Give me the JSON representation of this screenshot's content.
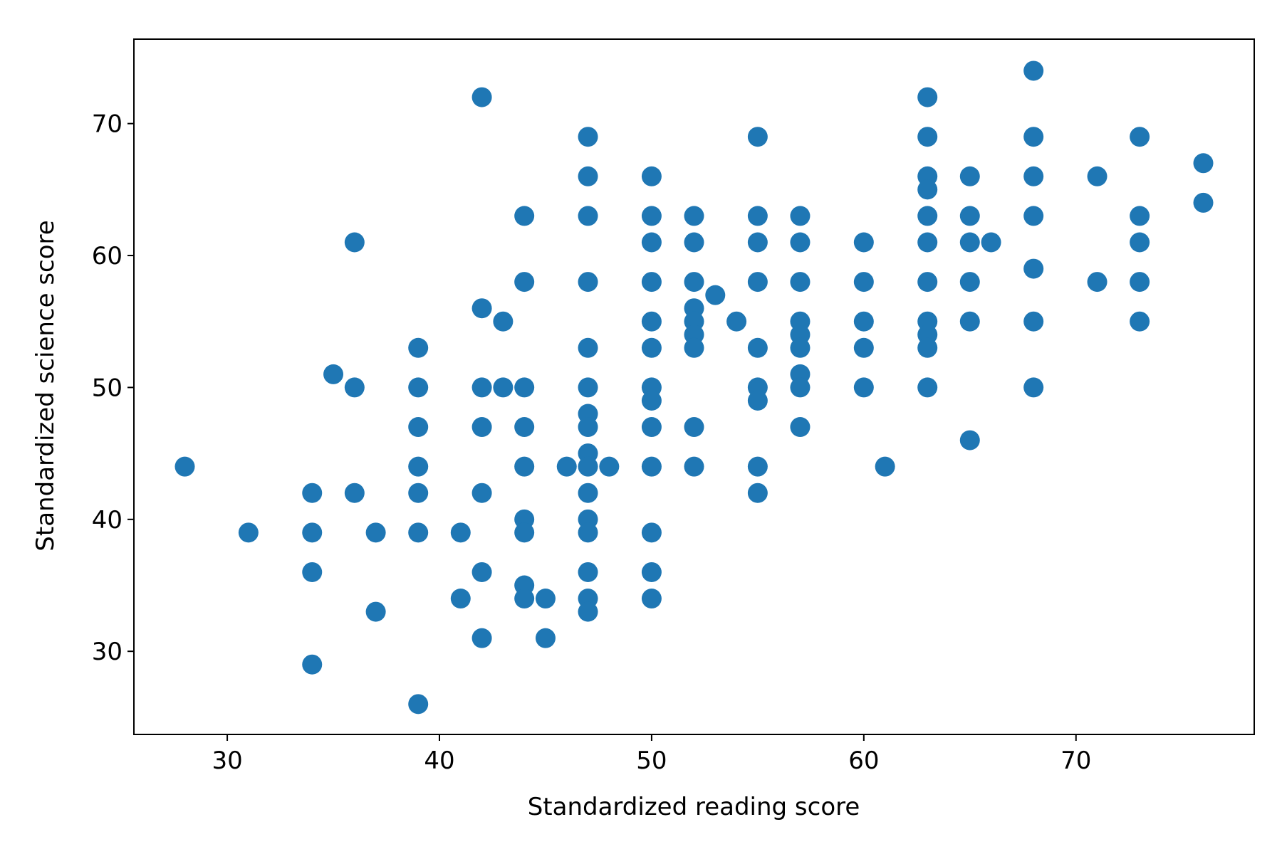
{
  "chart_data": {
    "type": "scatter",
    "xlabel": "Standardized reading score",
    "ylabel": "Standardized science score",
    "color": "#1f77b4",
    "x": [
      28,
      31,
      34,
      34,
      34,
      34,
      35,
      36,
      36,
      36,
      37,
      37,
      39,
      39,
      39,
      39,
      39,
      39,
      39,
      41,
      41,
      42,
      42,
      42,
      42,
      42,
      42,
      42,
      43,
      43,
      44,
      44,
      44,
      44,
      44,
      44,
      44,
      44,
      44,
      45,
      45,
      46,
      47,
      47,
      47,
      47,
      47,
      47,
      47,
      47,
      47,
      47,
      47,
      47,
      47,
      47,
      47,
      47,
      48,
      50,
      50,
      50,
      50,
      50,
      50,
      50,
      50,
      50,
      50,
      50,
      50,
      50,
      52,
      52,
      52,
      52,
      52,
      52,
      52,
      52,
      52,
      53,
      54,
      55,
      55,
      55,
      55,
      55,
      55,
      55,
      55,
      55,
      57,
      57,
      57,
      57,
      57,
      57,
      57,
      57,
      57,
      60,
      60,
      60,
      60,
      60,
      61,
      63,
      63,
      63,
      63,
      63,
      63,
      63,
      63,
      63,
      63,
      63,
      65,
      65,
      65,
      65,
      65,
      65,
      66,
      68,
      68,
      68,
      68,
      68,
      68,
      68,
      71,
      71,
      73,
      73,
      73,
      73,
      73,
      76,
      76
    ],
    "values": [
      44,
      39,
      42,
      39,
      36,
      29,
      51,
      61,
      50,
      42,
      39,
      33,
      53,
      50,
      47,
      44,
      42,
      39,
      26,
      39,
      34,
      72,
      56,
      50,
      47,
      42,
      36,
      31,
      55,
      50,
      63,
      58,
      50,
      47,
      44,
      40,
      39,
      35,
      34,
      34,
      31,
      44,
      69,
      66,
      63,
      58,
      53,
      50,
      48,
      47,
      45,
      44,
      42,
      40,
      39,
      36,
      34,
      33,
      44,
      66,
      63,
      61,
      58,
      55,
      53,
      50,
      49,
      47,
      44,
      39,
      36,
      34,
      63,
      61,
      58,
      56,
      55,
      54,
      53,
      47,
      44,
      57,
      55,
      69,
      63,
      61,
      58,
      53,
      50,
      49,
      44,
      42,
      63,
      61,
      58,
      55,
      54,
      53,
      51,
      50,
      47,
      61,
      58,
      55,
      53,
      50,
      44,
      72,
      69,
      66,
      65,
      63,
      61,
      58,
      55,
      54,
      53,
      50,
      66,
      63,
      61,
      58,
      55,
      46,
      61,
      74,
      69,
      66,
      63,
      59,
      55,
      50,
      66,
      58,
      69,
      63,
      61,
      58,
      55,
      67,
      64
    ],
    "xlim": [
      25.6,
      78.4
    ],
    "xticks": [
      30,
      40,
      50,
      60,
      70
    ],
    "ylim": [
      23.7,
      76.4
    ],
    "yticks": [
      30,
      40,
      50,
      60,
      70
    ]
  }
}
